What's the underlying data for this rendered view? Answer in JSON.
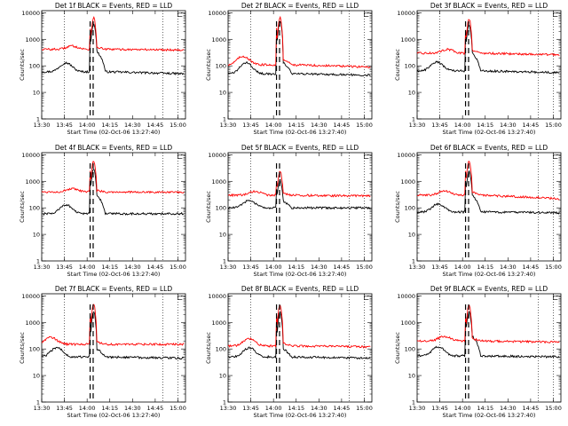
{
  "chart_data": {
    "type": "line",
    "shared": {
      "xlabel": "Start Time (02-Oct-06 13:27:40)",
      "ylabel": "Counts/sec",
      "xlim": [
        "13:30",
        "15:05"
      ],
      "x_ticks": [
        "13:30",
        "13:45",
        "14:00",
        "14:15",
        "14:30",
        "14:45",
        "15:00"
      ],
      "y_scale": "log",
      "ylim": [
        1,
        12000
      ],
      "y_ticks": [
        "1",
        "10",
        "100",
        "1000",
        "10000"
      ],
      "dotted_vertical_lines": [
        "13:45",
        "14:50",
        "15:00"
      ],
      "dashed_vertical_lines": [
        "14:02",
        "14:04"
      ],
      "colors": {
        "events": "#000000",
        "lld": "#ff0000"
      },
      "flag_marker": "⊏"
    },
    "panels": [
      {
        "title": "Det 1f BLACK = Events, RED = LLD",
        "series": [
          {
            "name": "Events",
            "color": "#000000",
            "base": 60,
            "pre": 130,
            "pre_at": "13:46",
            "peak": 4000,
            "post": 350,
            "late": 50
          },
          {
            "name": "LLD",
            "color": "#ff0000",
            "base": 420,
            "pre": 560,
            "pre_at": "13:50",
            "peak": 6500,
            "post": 500,
            "late": 400
          }
        ]
      },
      {
        "title": "Det 2f BLACK = Events, RED = LLD",
        "series": [
          {
            "name": "Events",
            "color": "#000000",
            "base": 50,
            "pre": 130,
            "pre_at": "13:42",
            "peak": 5000,
            "post": 130,
            "late": 45
          },
          {
            "name": "LLD",
            "color": "#ff0000",
            "base": 110,
            "pre": 230,
            "pre_at": "13:40",
            "peak": 6500,
            "post": 180,
            "late": 90
          }
        ]
      },
      {
        "title": "Det 3f BLACK = Events, RED = LLD",
        "series": [
          {
            "name": "Events",
            "color": "#000000",
            "base": 65,
            "pre": 140,
            "pre_at": "13:43",
            "peak": 3500,
            "post": 300,
            "late": 55
          },
          {
            "name": "LLD",
            "color": "#ff0000",
            "base": 300,
            "pre": 420,
            "pre_at": "13:50",
            "peak": 6000,
            "post": 400,
            "late": 260
          }
        ]
      },
      {
        "title": "Det 4f BLACK = Events, RED = LLD",
        "series": [
          {
            "name": "Events",
            "color": "#000000",
            "base": 60,
            "pre": 130,
            "pre_at": "13:46",
            "peak": 3000,
            "post": 300,
            "late": 60
          },
          {
            "name": "LLD",
            "color": "#ff0000",
            "base": 400,
            "pre": 520,
            "pre_at": "13:50",
            "peak": 6000,
            "post": 450,
            "late": 380
          }
        ]
      },
      {
        "title": "Det 5f BLACK = Events, RED = LLD",
        "series": [
          {
            "name": "Events",
            "color": "#000000",
            "base": 100,
            "pre": 190,
            "pre_at": "13:44",
            "peak": 1200,
            "post": 180,
            "late": 100
          },
          {
            "name": "LLD",
            "color": "#ff0000",
            "base": 300,
            "pre": 420,
            "pre_at": "13:48",
            "peak": 2500,
            "post": 350,
            "late": 280
          }
        ]
      },
      {
        "title": "Det 6f BLACK = Events, RED = LLD",
        "series": [
          {
            "name": "Events",
            "color": "#000000",
            "base": 70,
            "pre": 140,
            "pre_at": "13:44",
            "peak": 2500,
            "post": 300,
            "late": 65
          },
          {
            "name": "LLD",
            "color": "#ff0000",
            "base": 300,
            "pre": 440,
            "pre_at": "13:48",
            "peak": 6000,
            "post": 400,
            "late": 220
          }
        ]
      },
      {
        "title": "Det 7f BLACK = Events, RED = LLD",
        "series": [
          {
            "name": "Events",
            "color": "#000000",
            "base": 50,
            "pre": 110,
            "pre_at": "13:40",
            "peak": 2500,
            "post": 100,
            "late": 45
          },
          {
            "name": "LLD",
            "color": "#ff0000",
            "base": 150,
            "pre": 280,
            "pre_at": "13:36",
            "peak": 5000,
            "post": 180,
            "late": 150
          }
        ]
      },
      {
        "title": "Det 8f BLACK = Events, RED = LLD",
        "series": [
          {
            "name": "Events",
            "color": "#000000",
            "base": 50,
            "pre": 110,
            "pre_at": "13:44",
            "peak": 2500,
            "post": 100,
            "late": 45
          },
          {
            "name": "LLD",
            "color": "#ff0000",
            "base": 130,
            "pre": 240,
            "pre_at": "13:44",
            "peak": 4500,
            "post": 170,
            "late": 120
          }
        ]
      },
      {
        "title": "Det 9f BLACK = Events, RED = LLD",
        "series": [
          {
            "name": "Events",
            "color": "#000000",
            "base": 55,
            "pre": 120,
            "pre_at": "13:44",
            "peak": 2500,
            "post": 300,
            "late": 50
          },
          {
            "name": "LLD",
            "color": "#ff0000",
            "base": 200,
            "pre": 300,
            "pre_at": "13:48",
            "peak": 4500,
            "post": 250,
            "late": 180
          }
        ]
      }
    ]
  }
}
